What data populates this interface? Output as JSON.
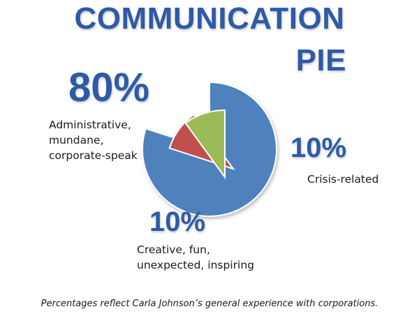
{
  "chart_data": {
    "type": "pie",
    "title_line1": "COMMUNICATION",
    "title_line2": "PIE",
    "slices": [
      {
        "value": 80,
        "percent_label": "80%",
        "label_lines": [
          "Administrative,",
          "mundane,",
          "corporate-speak"
        ],
        "color": "#4f81bd"
      },
      {
        "value": 10,
        "percent_label": "10%",
        "label_lines": [
          "Crisis-related"
        ],
        "color": "#c0504d"
      },
      {
        "value": 10,
        "percent_label": "10%",
        "label_lines": [
          "Creative, fun,",
          "unexpected, inspiring"
        ],
        "color": "#9bbb59"
      }
    ],
    "footnote": "Percentages reflect Carla Johnson’s general experience with corporations."
  }
}
